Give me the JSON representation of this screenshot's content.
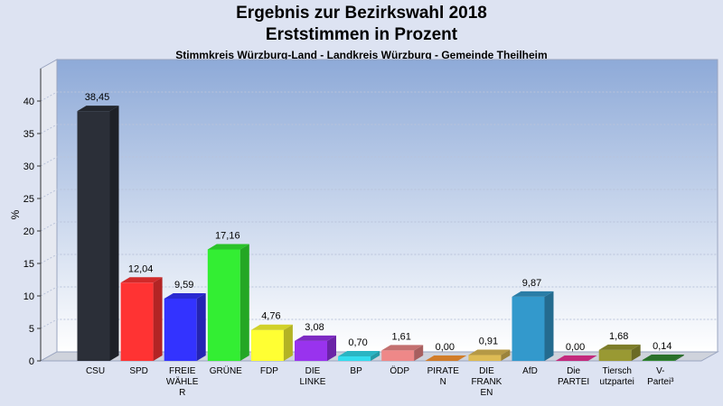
{
  "title": "Ergebnis zur Bezirkswahl 2018",
  "subtitle": "Erststimmen in Prozent",
  "subsubtitle": "Stimmkreis Würzburg-Land - Landkreis Würzburg - Gemeinde Theilheim",
  "chart_data": {
    "type": "bar",
    "title": "Ergebnis zur Bezirkswahl 2018",
    "subtitle": "Erststimmen in Prozent",
    "ylabel": "%",
    "xlabel": "",
    "ylim": [
      0,
      45
    ],
    "yticks": [
      0,
      5,
      10,
      15,
      20,
      25,
      30,
      35,
      40
    ],
    "grid": true,
    "categories": [
      [
        "CSU"
      ],
      [
        "SPD"
      ],
      [
        "FREIE",
        "WÄHLE",
        "R"
      ],
      [
        "GRÜNE"
      ],
      [
        "FDP"
      ],
      [
        "DIE",
        "LINKE"
      ],
      [
        "BP"
      ],
      [
        "ÖDP"
      ],
      [
        "PIRATE",
        "N"
      ],
      [
        "DIE",
        "FRANK",
        "EN"
      ],
      [
        "AfD"
      ],
      [
        "Die",
        "PARTEI"
      ],
      [
        "Tiersch",
        "utzpartei"
      ],
      [
        "V-",
        "Partei³"
      ]
    ],
    "values": [
      38.45,
      12.04,
      9.59,
      17.16,
      4.76,
      3.08,
      0.7,
      1.61,
      0.0,
      0.91,
      9.87,
      0.0,
      1.68,
      0.14
    ],
    "value_labels": [
      "38,45",
      "12,04",
      "9,59",
      "17,16",
      "4,76",
      "3,08",
      "0,70",
      "1,61",
      "0,00",
      "0,91",
      "9,87",
      "0,00",
      "1,68",
      "0,14"
    ],
    "colors": [
      "#2b2f38",
      "#ff3333",
      "#3333ff",
      "#33ee33",
      "#ffff33",
      "#9933ee",
      "#33ddee",
      "#ee8888",
      "#ff9933",
      "#ddbb55",
      "#3399cc",
      "#ee3399",
      "#999933",
      "#338833"
    ]
  }
}
